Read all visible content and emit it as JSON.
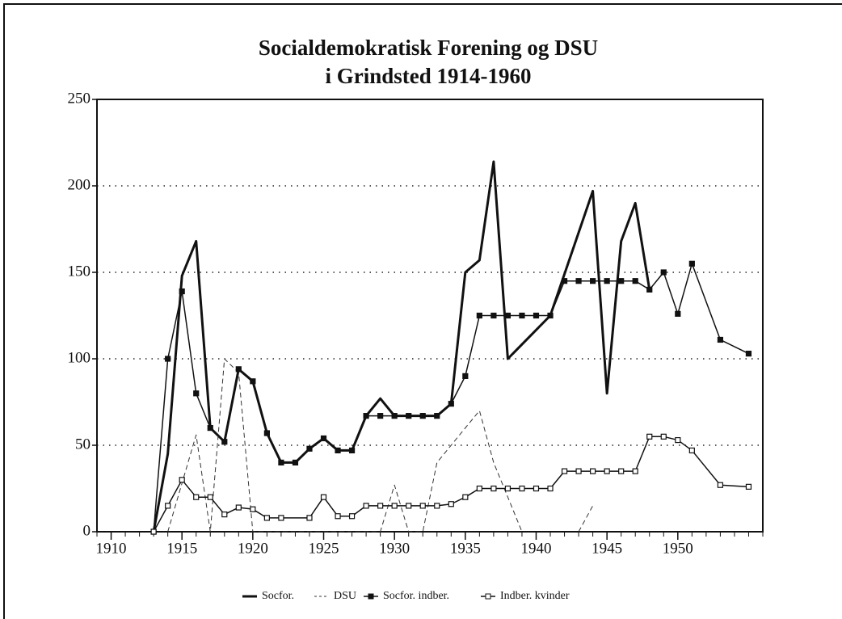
{
  "chart_data": {
    "type": "line",
    "title": [
      "Socialdemokratisk Forening og DSU",
      "i Grindsted 1914-1960"
    ],
    "xlim": [
      1909,
      1956
    ],
    "xticks": [
      1910,
      1915,
      1920,
      1925,
      1930,
      1935,
      1940,
      1945,
      1950
    ],
    "ylim": [
      0,
      250
    ],
    "yticks": [
      0,
      50,
      100,
      150,
      200,
      250
    ],
    "grid": true,
    "legend": "bottom",
    "series": [
      {
        "name": "Socfor.",
        "color": "#111111",
        "style": "thick",
        "x": [
          1913,
          1914,
          1915,
          1916,
          1917,
          1918,
          1919,
          1920,
          1921,
          1922,
          1923,
          1924,
          1925,
          1926,
          1927,
          1928,
          1929,
          1930,
          1931,
          1932,
          1933,
          1934,
          1935,
          1936,
          1937,
          1938,
          1941,
          1944,
          1945,
          1946,
          1947,
          1948
        ],
        "values": [
          0,
          45,
          148,
          168,
          60,
          52,
          94,
          87,
          57,
          40,
          40,
          48,
          54,
          47,
          47,
          67,
          77,
          67,
          67,
          67,
          67,
          74,
          150,
          157,
          214,
          100,
          125,
          197,
          80,
          168,
          190,
          140
        ]
      },
      {
        "name": "DSU",
        "color": "#333333",
        "style": "dashed",
        "x": [
          1914,
          1916,
          1917,
          1918,
          1919,
          1920,
          1929,
          1930,
          1931,
          1932,
          1933,
          1936,
          1937,
          1939,
          1941,
          1943,
          1944
        ],
        "values": [
          0,
          56,
          0,
          100,
          92,
          0,
          0,
          27,
          0,
          0,
          40,
          70,
          40,
          0,
          null,
          0,
          15
        ]
      },
      {
        "name": "Socfor. indber.",
        "color": "#111111",
        "style": "filled",
        "x": [
          1913,
          1914,
          1915,
          1916,
          1917,
          1918,
          1919,
          1920,
          1921,
          1922,
          1923,
          1924,
          1925,
          1926,
          1927,
          1928,
          1929,
          1930,
          1931,
          1932,
          1933,
          1934,
          1935,
          1936,
          1937,
          1938,
          1939,
          1940,
          1941,
          1942,
          1943,
          1944,
          1945,
          1946,
          1947,
          1948,
          1949,
          1950,
          1951,
          1953,
          1955
        ],
        "values": [
          0,
          100,
          139,
          80,
          60,
          52,
          94,
          87,
          57,
          40,
          40,
          48,
          54,
          47,
          47,
          67,
          67,
          67,
          67,
          67,
          67,
          74,
          90,
          125,
          125,
          125,
          125,
          125,
          125,
          145,
          145,
          145,
          145,
          145,
          145,
          140,
          150,
          126,
          155,
          111,
          103
        ]
      },
      {
        "name": "Indber. kvinder",
        "color": "#111111",
        "style": "open",
        "x": [
          1913,
          1914,
          1915,
          1916,
          1917,
          1918,
          1919,
          1920,
          1921,
          1922,
          1924,
          1925,
          1926,
          1927,
          1928,
          1929,
          1930,
          1931,
          1932,
          1933,
          1934,
          1935,
          1936,
          1937,
          1938,
          1939,
          1940,
          1941,
          1942,
          1943,
          1944,
          1945,
          1946,
          1947,
          1948,
          1949,
          1950,
          1951,
          1953,
          1955
        ],
        "values": [
          0,
          15,
          30,
          20,
          20,
          10,
          14,
          13,
          8,
          8,
          8,
          20,
          9,
          9,
          15,
          15,
          15,
          15,
          15,
          15,
          16,
          20,
          25,
          25,
          25,
          25,
          25,
          25,
          35,
          35,
          35,
          35,
          35,
          35,
          55,
          55,
          53,
          47,
          27,
          26
        ]
      }
    ]
  }
}
